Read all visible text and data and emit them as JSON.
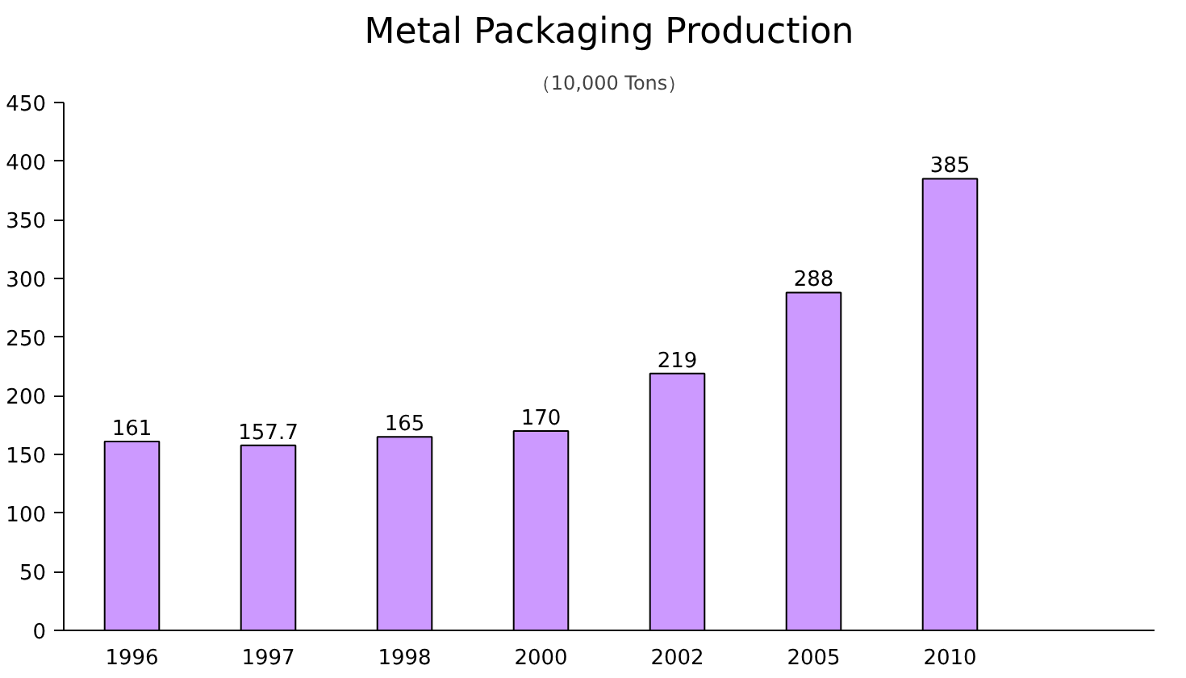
{
  "chart_data": {
    "type": "bar",
    "title": "Metal Packaging Production",
    "subtitle": "（10,000 Tons）",
    "categories": [
      "1996",
      "1997",
      "1998",
      "2000",
      "2002",
      "2005",
      "2010",
      null
    ],
    "values": [
      161,
      157.7,
      165,
      170,
      219,
      288,
      385,
      null
    ],
    "color": "#cc99ff",
    "data_labels": true,
    "ylim": [
      0,
      450
    ],
    "yticks": [
      0,
      50,
      100,
      150,
      200,
      250,
      300,
      350,
      400,
      450
    ],
    "grid": false
  }
}
